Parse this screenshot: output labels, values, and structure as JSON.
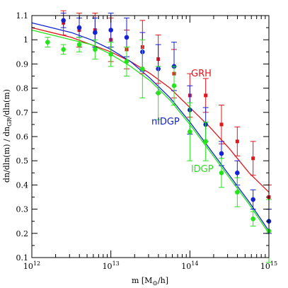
{
  "chart_data": {
    "type": "scatter",
    "title": "",
    "xlabel": "m [M⊙/h]",
    "ylabel": "dn/dln(m) / dnₕᵤ/dln(m)",
    "ylabel_parts": [
      "dn/dln(m) / dn",
      "GR",
      "/dln(m)"
    ],
    "xlabel_parts": [
      "m [M",
      "⊙",
      "/h]"
    ],
    "xscale": "log",
    "xlim_log10": [
      12,
      15
    ],
    "ylim": [
      0.1,
      1.1
    ],
    "x_ticks_log10": [
      12,
      13,
      14,
      15
    ],
    "x_tick_base": "10",
    "x_tick_exps": [
      "12",
      "13",
      "14",
      "15"
    ],
    "y_ticks": [
      0.1,
      0.2,
      0.3,
      0.4,
      0.5,
      0.6,
      0.7,
      0.8,
      0.9,
      1.0,
      1.1
    ],
    "y_tick_labels": [
      "0.1",
      "0.2",
      "0.3",
      "0.4",
      "0.5",
      "0.6",
      "0.7",
      "0.8",
      "0.9",
      "1",
      "1.1"
    ],
    "grid": false,
    "series": [
      {
        "name": "GRH",
        "color": "#e0161b",
        "marker": "square",
        "x_log10": [
          12.4,
          12.6,
          12.8,
          13.0,
          13.2,
          13.4,
          13.6,
          13.8,
          14.0,
          14.2,
          14.4,
          14.6,
          14.8,
          15.0
        ],
        "y": [
          1.07,
          1.04,
          1.04,
          1.0,
          0.96,
          0.97,
          0.92,
          0.86,
          0.77,
          0.77,
          0.65,
          0.58,
          0.51,
          0.35
        ],
        "yerr": [
          0.05,
          0.07,
          0.07,
          0.09,
          0.08,
          0.11,
          0.1,
          0.1,
          0.09,
          0.07,
          0.08,
          0.06,
          0.07,
          0.05
        ],
        "curve_x_log10": [
          12.0,
          12.25,
          12.5,
          12.75,
          13.0,
          13.25,
          13.5,
          13.75,
          14.0,
          14.25,
          14.5,
          14.75,
          15.0
        ],
        "curve_y": [
          1.05,
          1.03,
          1.01,
          0.98,
          0.95,
          0.91,
          0.86,
          0.8,
          0.72,
          0.64,
          0.55,
          0.45,
          0.37
        ]
      },
      {
        "name": "nlDGP",
        "color": "#1422d6",
        "marker": "circle",
        "x_log10": [
          12.4,
          12.6,
          12.8,
          13.0,
          13.2,
          13.4,
          13.6,
          13.8,
          14.0,
          14.2,
          14.4,
          14.6,
          14.8,
          15.0
        ],
        "y": [
          1.08,
          1.05,
          1.03,
          1.04,
          1.01,
          0.95,
          0.88,
          0.89,
          0.71,
          0.65,
          0.53,
          0.45,
          0.34,
          0.25
        ],
        "yerr": [
          0.03,
          0.04,
          0.06,
          0.07,
          0.08,
          0.08,
          0.1,
          0.1,
          0.1,
          0.07,
          0.05,
          0.05,
          0.04,
          0.05
        ],
        "curve_x_log10": [
          12.0,
          12.25,
          12.5,
          12.75,
          13.0,
          13.25,
          13.5,
          13.75,
          14.0,
          14.25,
          14.5,
          14.75,
          15.0
        ],
        "curve_y": [
          1.07,
          1.05,
          1.03,
          1.0,
          0.96,
          0.91,
          0.84,
          0.76,
          0.66,
          0.55,
          0.44,
          0.33,
          0.21
        ]
      },
      {
        "name": "lDGP",
        "color": "#24e41a",
        "marker": "circle",
        "x_log10": [
          12.2,
          12.4,
          12.6,
          12.8,
          13.0,
          13.2,
          13.4,
          13.6,
          13.8,
          14.0,
          14.2,
          14.4,
          14.6,
          14.8,
          15.0
        ],
        "y": [
          0.99,
          0.96,
          0.98,
          0.96,
          0.94,
          0.91,
          0.88,
          0.78,
          0.81,
          0.62,
          0.58,
          0.45,
          0.37,
          0.26,
          0.21
        ],
        "yerr": [
          0.02,
          0.02,
          0.03,
          0.04,
          0.05,
          0.06,
          0.12,
          0.11,
          0.08,
          0.12,
          0.08,
          0.06,
          0.06,
          0.03,
          0.13
        ],
        "curve_x_log10": [
          12.0,
          12.25,
          12.5,
          12.75,
          13.0,
          13.25,
          13.5,
          13.75,
          14.0,
          14.25,
          14.5,
          14.75,
          15.0
        ],
        "curve_y": [
          1.04,
          1.02,
          1.0,
          0.98,
          0.94,
          0.89,
          0.83,
          0.75,
          0.65,
          0.54,
          0.43,
          0.32,
          0.2
        ]
      }
    ]
  },
  "labels": {
    "grh": "GRH",
    "nldgp": "nlDGP",
    "ldgp": "lDGP"
  }
}
